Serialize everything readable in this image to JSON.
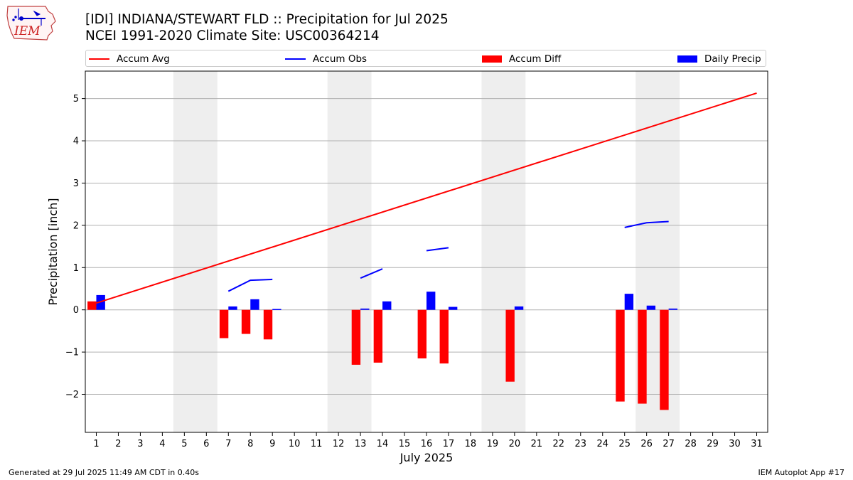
{
  "header": {
    "title_line1": "[IDI] INDIANA/STEWART FLD :: Precipitation for Jul 2025",
    "title_line2": "NCEI 1991-2020 Climate Site: USC00364214",
    "logo_text": "IEM"
  },
  "footer": {
    "generated": "Generated at 29 Jul 2025 11:49 AM CDT in 0.40s",
    "app": "IEM Autoplot App #17"
  },
  "colors": {
    "accum_avg": "#ff0000",
    "accum_obs": "#0000ff",
    "accum_diff": "#ff0000",
    "daily_precip": "#0000ff",
    "weekend_shade": "#eeeeee",
    "grid": "#b0b0b0"
  },
  "chart_data": {
    "type": "bar",
    "xlabel": "July 2025",
    "ylabel": "Precipitation [inch]",
    "xlim": [
      0.5,
      31.5
    ],
    "ylim": [
      -2.9,
      5.65
    ],
    "x_ticks": [
      1,
      2,
      3,
      4,
      5,
      6,
      7,
      8,
      9,
      10,
      11,
      12,
      13,
      14,
      15,
      16,
      17,
      18,
      19,
      20,
      21,
      22,
      23,
      24,
      25,
      26,
      27,
      28,
      29,
      30,
      31
    ],
    "y_ticks": [
      -2,
      -1,
      0,
      1,
      2,
      3,
      4,
      5
    ],
    "grid": "horizontal",
    "legend_position": "top, above plot",
    "shaded_weekends": [
      [
        5,
        6
      ],
      [
        12,
        13
      ],
      [
        19,
        20
      ],
      [
        26,
        27
      ]
    ],
    "series": [
      {
        "name": "Accum Avg",
        "kind": "line",
        "x": [
          1,
          31
        ],
        "values": [
          0.16,
          5.13
        ]
      },
      {
        "name": "Accum Obs",
        "kind": "line",
        "segments": [
          {
            "x": [
              7,
              8,
              9
            ],
            "values": [
              0.44,
              0.7,
              0.72
            ]
          },
          {
            "x": [
              13,
              14
            ],
            "values": [
              0.75,
              0.97
            ]
          },
          {
            "x": [
              16,
              17
            ],
            "values": [
              1.4,
              1.47
            ]
          },
          {
            "x": [
              25,
              26,
              27
            ],
            "values": [
              1.95,
              2.06,
              2.09
            ]
          }
        ]
      },
      {
        "name": "Accum Diff",
        "kind": "bar",
        "x": [
          1,
          7,
          8,
          9,
          13,
          14,
          16,
          17,
          20,
          25,
          26,
          27
        ],
        "values": [
          0.2,
          -0.67,
          -0.57,
          -0.7,
          -1.3,
          -1.25,
          -1.15,
          -1.27,
          -1.7,
          -2.17,
          -2.22,
          -2.37
        ]
      },
      {
        "name": "Daily Precip",
        "kind": "bar",
        "x": [
          1,
          7,
          8,
          9,
          13,
          14,
          16,
          17,
          20,
          25,
          26,
          27
        ],
        "values": [
          0.35,
          0.08,
          0.25,
          0.02,
          0.03,
          0.2,
          0.43,
          0.07,
          0.08,
          0.38,
          0.1,
          0.03
        ]
      }
    ]
  }
}
